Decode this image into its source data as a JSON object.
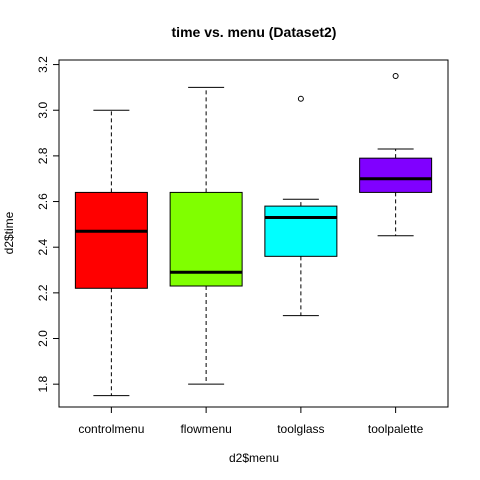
{
  "chart_data": {
    "type": "boxplot",
    "title": "time vs. menu (Dataset2)",
    "xlabel": "d2$menu",
    "ylabel": "d2$time",
    "ylim": [
      1.7,
      3.22
    ],
    "yticks": [
      1.8,
      2.0,
      2.2,
      2.4,
      2.6,
      2.8,
      3.0,
      3.2
    ],
    "ytick_labels": [
      "1.8",
      "2.0",
      "2.2",
      "2.4",
      "2.6",
      "2.8",
      "3.0",
      "3.2"
    ],
    "grid": false,
    "categories": [
      "controlmenu",
      "flowmenu",
      "toolglass",
      "toolpalette"
    ],
    "boxes": [
      {
        "category": "controlmenu",
        "color": "#ff0000",
        "whisker_low": 1.75,
        "q1": 2.22,
        "median": 2.47,
        "q3": 2.64,
        "whisker_high": 3.0,
        "outliers": []
      },
      {
        "category": "flowmenu",
        "color": "#80ff00",
        "whisker_low": 1.8,
        "q1": 2.23,
        "median": 2.29,
        "q3": 2.64,
        "whisker_high": 3.1,
        "outliers": []
      },
      {
        "category": "toolglass",
        "color": "#00ffff",
        "whisker_low": 2.1,
        "q1": 2.36,
        "median": 2.53,
        "q3": 2.58,
        "whisker_high": 2.61,
        "outliers": [
          3.05
        ]
      },
      {
        "category": "toolpalette",
        "color": "#8000ff",
        "whisker_low": 2.45,
        "q1": 2.64,
        "median": 2.7,
        "q3": 2.79,
        "whisker_high": 2.83,
        "outliers": [
          3.15
        ]
      }
    ]
  }
}
